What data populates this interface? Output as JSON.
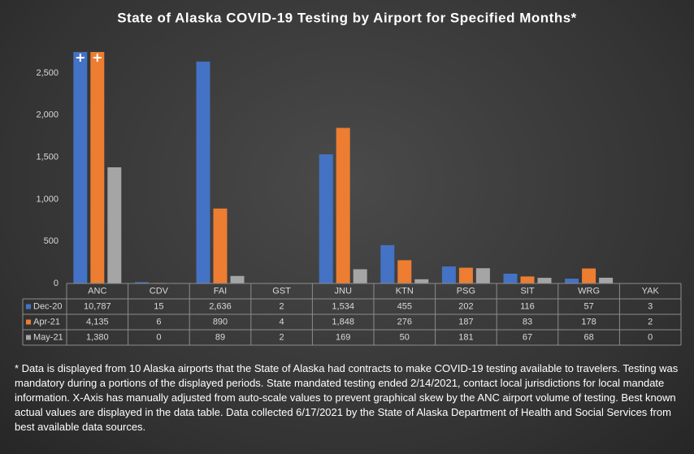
{
  "chart_data": {
    "type": "bar",
    "title": "State of Alaska COVID-19 Testing by Airport for Specified Months*",
    "categories": [
      "ANC",
      "CDV",
      "FAI",
      "GST",
      "JNU",
      "KTN",
      "PSG",
      "SIT",
      "WRG",
      "YAK"
    ],
    "series": [
      {
        "name": "Dec-20",
        "color": "#4472c4",
        "values": [
          10787,
          15,
          2636,
          2,
          1534,
          455,
          202,
          116,
          57,
          3
        ],
        "value_labels": [
          "10,787",
          "15",
          "2,636",
          "2",
          "1,534",
          "455",
          "202",
          "116",
          "57",
          "3"
        ]
      },
      {
        "name": "Apr-21",
        "color": "#ed7d31",
        "values": [
          4135,
          6,
          890,
          4,
          1848,
          276,
          187,
          83,
          178,
          2
        ],
        "value_labels": [
          "4,135",
          "6",
          "890",
          "4",
          "1,848",
          "276",
          "187",
          "83",
          "178",
          "2"
        ]
      },
      {
        "name": "May-21",
        "color": "#a5a5a5",
        "values": [
          1380,
          0,
          89,
          2,
          169,
          50,
          181,
          67,
          68,
          0
        ],
        "value_labels": [
          "1,380",
          "0",
          "89",
          "2",
          "169",
          "50",
          "181",
          "67",
          "68",
          "0"
        ]
      }
    ],
    "ylim": [
      0,
      2750
    ],
    "yticks": [
      0,
      500,
      {
        "value": 1000,
        "label": "1,000"
      },
      {
        "value": 1500,
        "label": "1,500"
      },
      {
        "value": 2000,
        "label": "2,000"
      },
      {
        "value": 2500,
        "label": "2,500"
      }
    ],
    "grid": false,
    "note": "* Data is displayed from 10 Alaska airports that the State of Alaska had contracts to make COVID-19 testing available to travelers.  Testing was mandatory during a portions of the displayed periods.  State mandated testing ended 2/14/2021,  contact local jurisdictions for local mandate information.  X-Axis has manually adjusted from auto-scale values to prevent graphical skew by the ANC airport volume of testing.  Best known actual values are displayed in the data table.  Data collected 6/17/2021 by the State of Alaska Department of Health and Social Services from best available data sources."
  }
}
